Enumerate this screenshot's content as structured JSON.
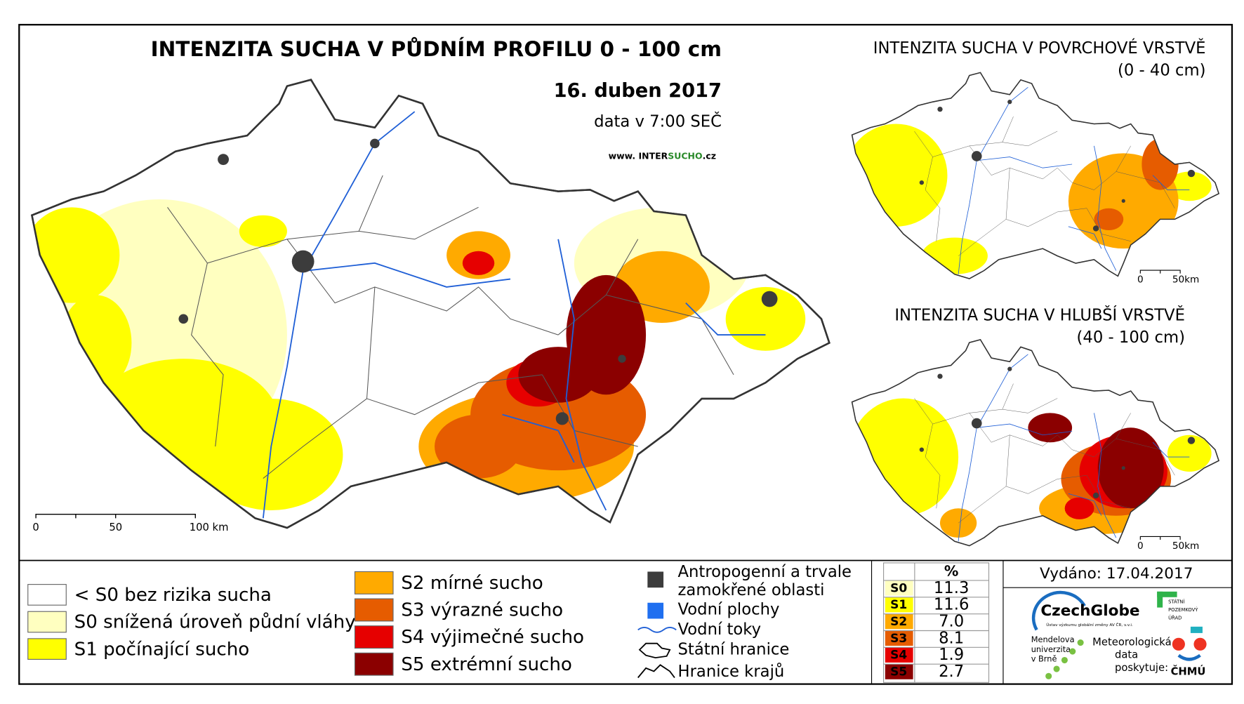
{
  "main_map": {
    "title": "INTENZITA SUCHA V PŮDNÍM PROFILU 0 - 100 cm",
    "date": "16. duben 2017",
    "time": "data v 7:00 SEČ",
    "website": {
      "prefix": "www. INTER",
      "highlight": "SUCHO",
      "suffix": ".cz"
    },
    "scale": [
      "0",
      "50",
      "100 km"
    ]
  },
  "inset_top": {
    "title": "INTENZITA SUCHA V POVRCHOVÉ VRSTVĚ",
    "subtitle": "(0 - 40 cm)",
    "scale": [
      "0",
      "50km"
    ]
  },
  "inset_bottom": {
    "title": "INTENZITA SUCHA V HLUBŠÍ VRSTVĚ",
    "subtitle": "(40 - 100 cm)",
    "scale": [
      "0",
      "50km"
    ]
  },
  "legend": {
    "drought_classes": [
      {
        "label": "< S0 bez rizika sucha",
        "color": "#ffffff"
      },
      {
        "label": "S0 snížená úroveň půdní vláhy",
        "color": "#ffffc0"
      },
      {
        "label": "S1 počínající sucho",
        "color": "#ffff00"
      },
      {
        "label": "S2 mírné sucho",
        "color": "#ffaa00"
      },
      {
        "label": "S3 výrazné sucho",
        "color": "#e65c00"
      },
      {
        "label": "S4 výjimečné sucho",
        "color": "#e60000"
      },
      {
        "label": "S5 extrémní sucho",
        "color": "#8b0000"
      }
    ],
    "features": [
      {
        "label": [
          "Antropogenní a trvale",
          "zamokřené oblasti"
        ]
      },
      {
        "label": [
          "Vodní plochy"
        ]
      },
      {
        "label": [
          "Vodní toky"
        ]
      },
      {
        "label": [
          "Státní hranice"
        ]
      },
      {
        "label": [
          "Hranice krajů"
        ]
      }
    ]
  },
  "table": {
    "header": "%",
    "rows": [
      {
        "code": "S0",
        "value": "11.3"
      },
      {
        "code": "S1",
        "value": "11.6"
      },
      {
        "code": "S2",
        "value": "7.0"
      },
      {
        "code": "S3",
        "value": "8.1"
      },
      {
        "code": "S4",
        "value": "1.9"
      },
      {
        "code": "S5",
        "value": "2.7"
      }
    ]
  },
  "issued": "Vydáno: 17.04.2017",
  "logos": {
    "czechglobe": "CzechGlobe",
    "czechglobe_sub": "Ústav výzkumu globální změny AV ČR, v.v.i.",
    "spu": [
      "STÁTNÍ",
      "POZEMKOVÝ",
      "ÚŘAD"
    ],
    "mendelu": [
      "Mendelova",
      "univerzita",
      "v Brně"
    ],
    "meteo": [
      "Meteorologická",
      "data",
      "poskytuje:"
    ],
    "chmu": "ČHMÚ"
  }
}
